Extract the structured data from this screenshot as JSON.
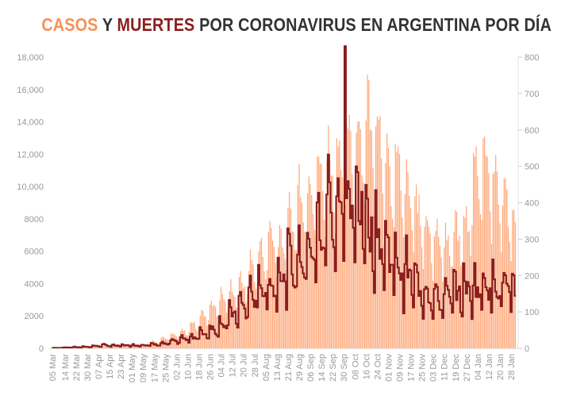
{
  "chart_data": {
    "type": "bar+line",
    "title": {
      "part1": "CASOS",
      "part2": " Y ",
      "part3": "MUERTES",
      "part4": " POR CORONAVIRUS EN ARGENTINA POR DÍA"
    },
    "start_date": "05 Mar",
    "days": 333,
    "colors": {
      "cases": "#ffa677",
      "deaths": "#8b1e1e",
      "title_cases": "#f7915a",
      "title_deaths": "#8b1e1e",
      "axis": "#999999"
    },
    "left_axis": {
      "label": "cases",
      "ylim": [
        0,
        18000
      ],
      "ticks": [
        "0",
        "2000",
        "4000",
        "6000",
        "8000",
        "10,000",
        "12,000",
        "14,000",
        "16,000",
        "18,000"
      ]
    },
    "right_axis": {
      "label": "deaths",
      "ylim": [
        0,
        800
      ],
      "ticks": [
        "0",
        "100",
        "200",
        "300",
        "400",
        "500",
        "600",
        "700",
        "800"
      ]
    },
    "x_tick_labels": [
      "05 Mar",
      "14 Mar",
      "22 Mar",
      "30 Mar",
      "07 Apr",
      "15 Apr",
      "23 Apr",
      "01 May",
      "09 May",
      "17 May",
      "25 May",
      "02 Jun",
      "10 Jun",
      "18 Jun",
      "26 Jun",
      "04 Jul",
      "12 Jul",
      "20 Jul",
      "28 Jul",
      "05 Aug",
      "13 Aug",
      "21 Aug",
      "29 Aug",
      "06 Sep",
      "14 Sep",
      "22 Sep",
      "30 Sep",
      "08 Oct",
      "16 Oct",
      "24 Oct",
      "01 Nov",
      "09 Nov",
      "17 Nov",
      "25 Nov",
      "03 Dec",
      "11 Dec",
      "19 Dec",
      "27 Dec",
      "04 Jan",
      "12 Jan",
      "20 Jan",
      "28 Jan"
    ],
    "x_tick_day_index": [
      0,
      9,
      17,
      25,
      33,
      41,
      49,
      57,
      65,
      73,
      81,
      89,
      97,
      105,
      113,
      121,
      129,
      137,
      145,
      153,
      161,
      169,
      177,
      185,
      193,
      201,
      209,
      217,
      225,
      233,
      241,
      249,
      257,
      265,
      273,
      281,
      289,
      297,
      305,
      313,
      321,
      329
    ],
    "weekly_avg_cases": [
      5,
      20,
      60,
      80,
      90,
      100,
      110,
      130,
      150,
      230,
      400,
      600,
      750,
      950,
      1400,
      1900,
      2500,
      2900,
      3300,
      3700,
      4700,
      5500,
      6500,
      6300,
      7400,
      9000,
      9500,
      10000,
      10700,
      11300,
      11600,
      12500,
      13500,
      13000,
      10000,
      10500,
      9000,
      8000,
      7200,
      6500,
      6200,
      6700,
      7200,
      10500,
      11200,
      9500,
      8600,
      7500
    ],
    "weekly_avg_deaths": [
      1,
      2,
      3,
      4,
      6,
      8,
      7,
      8,
      8,
      9,
      10,
      12,
      18,
      25,
      30,
      40,
      50,
      65,
      90,
      110,
      140,
      160,
      170,
      200,
      220,
      240,
      270,
      300,
      380,
      360,
      370,
      380,
      330,
      290,
      260,
      220,
      200,
      170,
      150,
      130,
      140,
      150,
      160,
      160,
      175,
      170,
      165,
      140
    ],
    "weekday_factor_cases": [
      0.7,
      1.1,
      1.22,
      1.15,
      1.08,
      0.95,
      0.8
    ],
    "weekday_factor_deaths": [
      0.6,
      1.25,
      1.3,
      1.1,
      1.0,
      0.95,
      0.8
    ],
    "notable_points": [
      {
        "date": "01 Oct",
        "deaths": 830
      }
    ]
  }
}
